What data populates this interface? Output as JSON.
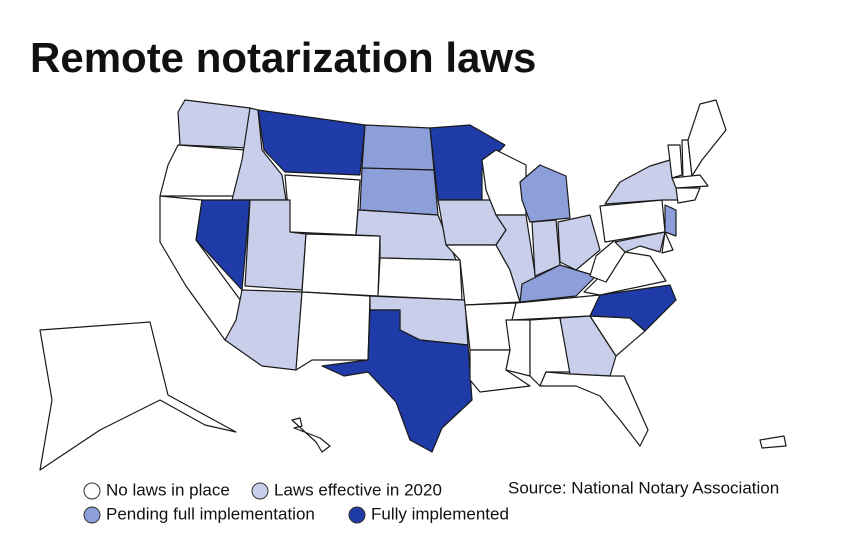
{
  "title": "Remote notarization laws",
  "source": "Source: National Notary Association",
  "legend": [
    {
      "label": "No laws in place",
      "color": "#ffffff"
    },
    {
      "label": "Laws effective in 2020",
      "color": "#c9cfea"
    },
    {
      "label": "Pending full implementation",
      "color": "#8d9fd9"
    },
    {
      "label": "Fully implemented",
      "color": "#1f3ba8"
    }
  ],
  "map": {
    "region_status": [
      1,
      0,
      0,
      1,
      3,
      3,
      0,
      1,
      1,
      0,
      0,
      2,
      2,
      1,
      0,
      1,
      3,
      3,
      1,
      0,
      0,
      0,
      0,
      1,
      2,
      1,
      1,
      2,
      0,
      0,
      0,
      1,
      0,
      0,
      3,
      0,
      0,
      0,
      1,
      1,
      0,
      2,
      0,
      0,
      0,
      0,
      0,
      0,
      0,
      0
    ]
  }
}
